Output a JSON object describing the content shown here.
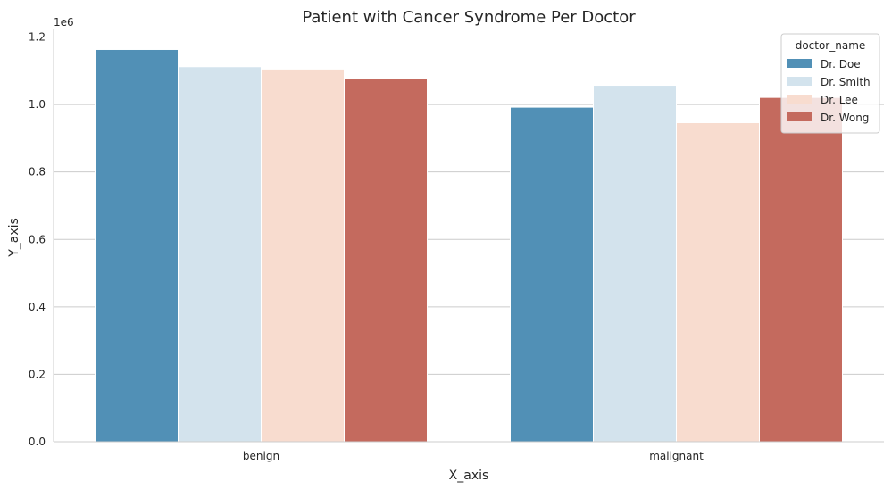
{
  "chart_data": {
    "type": "bar",
    "title": "Patient with Cancer Syndrome Per Doctor",
    "xlabel": "X_axis",
    "ylabel": "Y_axis",
    "y_scale_label": "1e6",
    "categories": [
      "benign",
      "malignant"
    ],
    "ylim": [
      0,
      1.2225
    ],
    "yticks": [
      0.0,
      0.2,
      0.4,
      0.6,
      0.8,
      1.0,
      1.2
    ],
    "ytick_labels": [
      "0.0",
      "0.2",
      "0.4",
      "0.6",
      "0.8",
      "1.0",
      "1.2"
    ],
    "grid": true,
    "legend_title": "doctor_name",
    "legend_position": "top-right",
    "series": [
      {
        "name": "Dr. Doe",
        "color": "#5190b6",
        "values": [
          1.163,
          0.992
        ]
      },
      {
        "name": "Dr. Smith",
        "color": "#d3e3ed",
        "values": [
          1.112,
          1.057
        ]
      },
      {
        "name": "Dr. Lee",
        "color": "#f8dccf",
        "values": [
          1.105,
          0.946
        ]
      },
      {
        "name": "Dr. Wong",
        "color": "#c46a5e",
        "values": [
          1.078,
          1.021
        ]
      }
    ]
  }
}
